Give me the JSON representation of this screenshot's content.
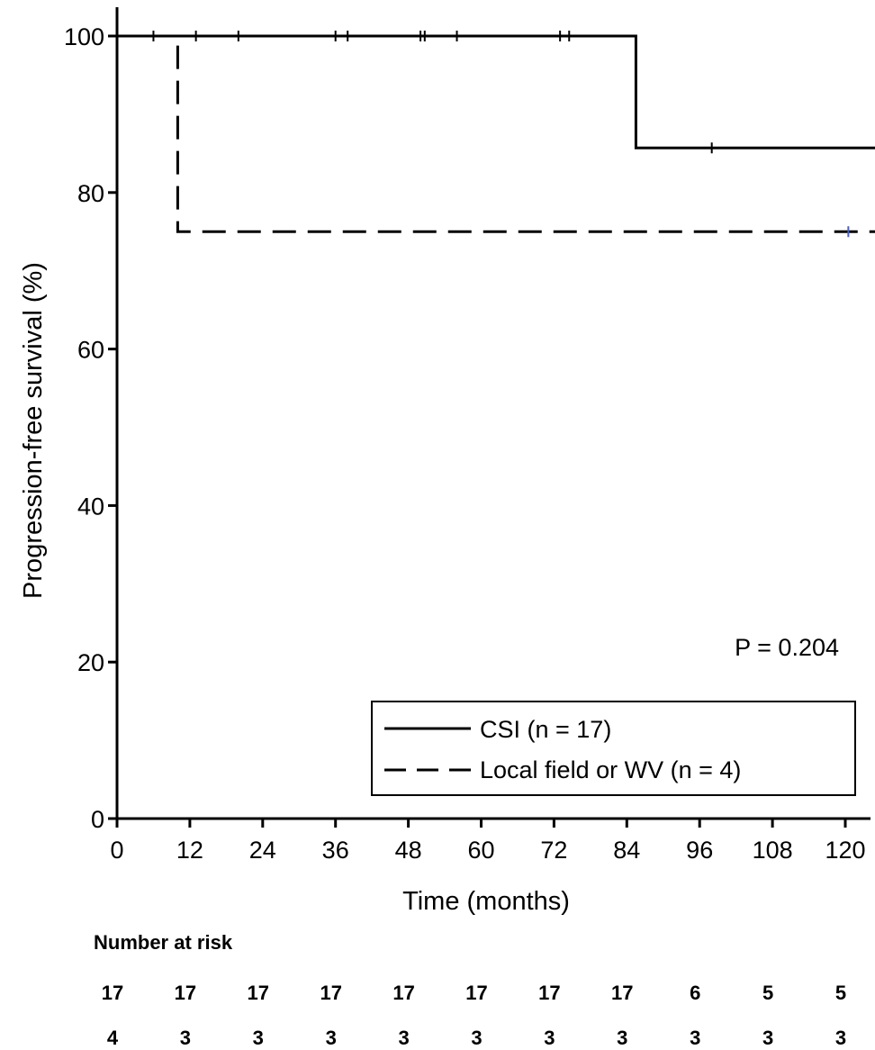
{
  "chart_data": {
    "type": "line",
    "step": true,
    "xlabel": "Time (months)",
    "ylabel": "Progression-free survival (%)",
    "xlim": [
      0,
      125
    ],
    "ylim": [
      0,
      100
    ],
    "xticks": [
      0,
      12,
      24,
      36,
      48,
      60,
      72,
      84,
      96,
      108,
      120
    ],
    "yticks": [
      0,
      20,
      40,
      60,
      80,
      100
    ],
    "grid": false,
    "legend_position": "bottom-right",
    "series": [
      {
        "name": "CSI (n = 17)",
        "style": "solid",
        "color": "#000000",
        "steps": [
          [
            0,
            100
          ],
          [
            85.5,
            100
          ],
          [
            85.5,
            85.7
          ],
          [
            125,
            85.7
          ]
        ],
        "censored": [
          [
            6,
            100
          ],
          [
            13,
            100
          ],
          [
            20,
            100
          ],
          [
            36,
            100
          ],
          [
            38,
            100
          ],
          [
            50,
            100
          ],
          [
            50.7,
            100
          ],
          [
            56,
            100
          ],
          [
            73,
            100
          ],
          [
            74.5,
            100
          ],
          [
            98,
            85.7
          ]
        ]
      },
      {
        "name": "Local field or WV (n = 4)",
        "style": "dashed",
        "color": "#000000",
        "steps": [
          [
            0,
            100
          ],
          [
            10,
            100
          ],
          [
            10,
            75
          ],
          [
            125,
            75
          ]
        ],
        "censored": [
          [
            120.5,
            75
          ]
        ],
        "censor_color": "#4a5fc1"
      }
    ],
    "annotations": [
      {
        "text": "P = 0.204",
        "x": 116,
        "y": 22
      }
    ],
    "risk_table": {
      "title": "Number at risk",
      "times": [
        0,
        12,
        24,
        36,
        48,
        60,
        72,
        84,
        96,
        108,
        120
      ],
      "rows": [
        [
          17,
          17,
          17,
          17,
          17,
          17,
          17,
          17,
          6,
          5,
          5
        ],
        [
          4,
          3,
          3,
          3,
          3,
          3,
          3,
          3,
          3,
          3,
          3
        ]
      ]
    }
  }
}
